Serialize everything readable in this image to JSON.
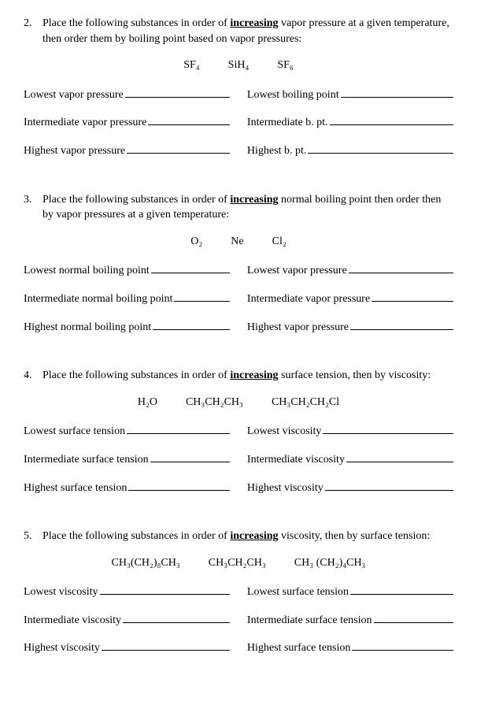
{
  "font_family": "Georgia, Times New Roman, serif",
  "font_size": 14,
  "text_color": "#000000",
  "background_color": "#ffffff",
  "questions": [
    {
      "number": "2.",
      "prompt_before": "Place the following substances in order of ",
      "prompt_bold": "increasing",
      "prompt_after": " vapor pressure at a given temperature, then order them by boiling point based on vapor pressures:",
      "substances": [
        "SF₄",
        "SiH₄",
        "SF₆"
      ],
      "left_labels": [
        "Lowest vapor pressure",
        "Intermediate vapor pressure",
        "Highest vapor pressure"
      ],
      "right_labels": [
        "Lowest boiling point",
        "Intermediate b. pt.",
        "Highest b. pt."
      ]
    },
    {
      "number": "3.",
      "prompt_before": "Place the following substances in order of ",
      "prompt_bold": "increasing",
      "prompt_after": " normal boiling point then order then by vapor pressures at a given temperature:",
      "substances": [
        "O₂",
        "Ne",
        "Cl₂"
      ],
      "left_labels": [
        "Lowest normal boiling point",
        "Intermediate normal boiling point",
        "Highest normal boiling point"
      ],
      "right_labels": [
        "Lowest vapor pressure",
        "Intermediate vapor pressure",
        "Highest vapor pressure"
      ]
    },
    {
      "number": "4.",
      "prompt_before": "Place the following substances in order of ",
      "prompt_bold": "increasing",
      "prompt_after": " surface tension, then by viscosity:",
      "substances": [
        "H₂O",
        "CH₃CH₂CH₃",
        "CH₃CH₂CH₂Cl"
      ],
      "left_labels": [
        "Lowest surface tension",
        "Intermediate surface tension",
        "Highest surface tension"
      ],
      "right_labels": [
        "Lowest viscosity",
        "Intermediate viscosity",
        "Highest viscosity"
      ]
    },
    {
      "number": "5.",
      "prompt_before": "Place the following substances in order of ",
      "prompt_bold": "increasing",
      "prompt_after": " viscosity, then by surface tension:",
      "substances": [
        "CH₃(CH₂)₈CH₃",
        "CH₃CH₂CH₃",
        "CH₃ (CH₂)₄CH₃"
      ],
      "left_labels": [
        "Lowest viscosity",
        "Intermediate viscosity",
        "Highest viscosity"
      ],
      "right_labels": [
        "Lowest surface tension",
        "Intermediate surface tension",
        "Highest surface tension"
      ]
    }
  ]
}
